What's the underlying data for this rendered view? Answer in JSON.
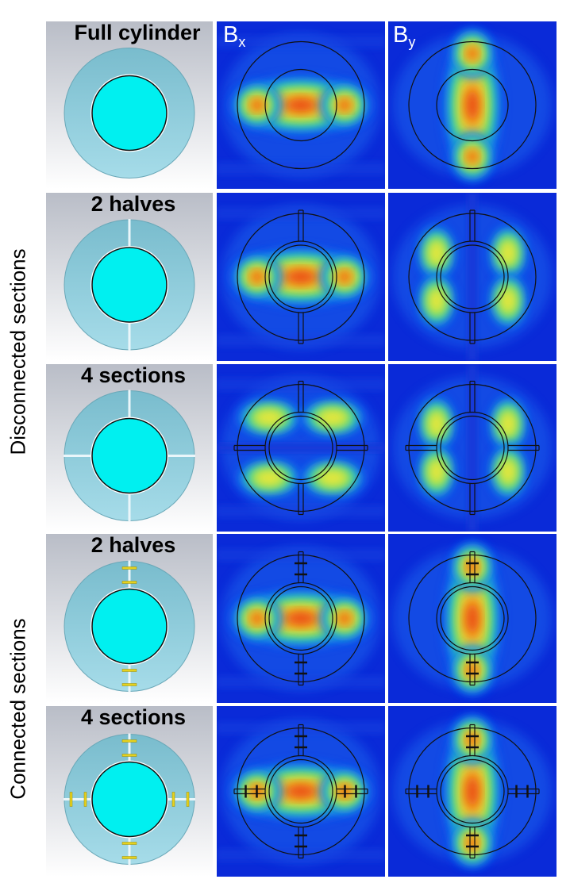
{
  "columns": {
    "bx": {
      "symbol": "B",
      "sub": "x"
    },
    "by": {
      "symbol": "B",
      "sub": "y"
    }
  },
  "groups": {
    "disconnected": "Disconnected sections",
    "connected": "Connected sections"
  },
  "rows": [
    {
      "label": "Full cylinder",
      "sections": 0,
      "connected": false
    },
    {
      "label": "2 halves",
      "sections": 2,
      "connected": false
    },
    {
      "label": "4 sections",
      "sections": 4,
      "connected": false
    },
    {
      "label": "2 halves",
      "sections": 2,
      "connected": true
    },
    {
      "label": "4 sections",
      "sections": 4,
      "connected": true
    }
  ],
  "colors": {
    "field_low": "#0a2ad8",
    "field_high": "#e8200a",
    "ring": "#8fcddc",
    "core": "#00f0f0",
    "capacitor": "#e6d21e"
  }
}
